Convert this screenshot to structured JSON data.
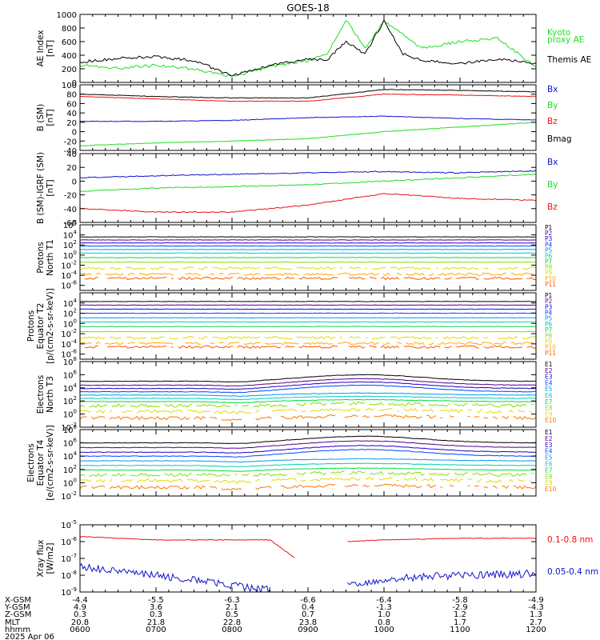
{
  "title": "GOES-18",
  "colors": {
    "black": "#000000",
    "red": "#ee1111",
    "green": "#22dd22",
    "blue": "#1111cc"
  },
  "panel_series_colors": {
    "protons": [
      "#000000",
      "#550088",
      "#2200cc",
      "#0044ff",
      "#0099ee",
      "#00ccbb",
      "#00dd44",
      "#88dd00",
      "#dddd00",
      "#ffaa00",
      "#ff5500",
      "#cc0000"
    ],
    "electrons": [
      "#000000",
      "#550088",
      "#2200cc",
      "#0044ff",
      "#0099ee",
      "#00ccbb",
      "#00dd44",
      "#88dd00",
      "#dddd00",
      "#ff7700",
      "#cc0000"
    ]
  },
  "chart_data": [
    {
      "id": "ae",
      "type": "line",
      "ylabel": [
        "AE Index",
        "[nT]"
      ],
      "ylim": [
        0,
        1000
      ],
      "scale": "linear",
      "yticks": [
        0,
        200,
        400,
        600,
        800,
        1000
      ],
      "ytick_labels": [
        "0",
        "200",
        "400",
        "600",
        "800",
        "1000"
      ],
      "x": [
        "0600",
        "0630",
        "0700",
        "0730",
        "0800",
        "0830",
        "0900",
        "0915",
        "0930",
        "0945",
        "1000",
        "1015",
        "1030",
        "1100",
        "1130",
        "1200"
      ],
      "series": [
        {
          "name": "Kyoto proxy AE",
          "color_key": "green",
          "legend_lines": [
            "Kyoto",
            "proxy AE"
          ],
          "values": [
            250,
            210,
            250,
            200,
            90,
            230,
            320,
            420,
            920,
            500,
            900,
            700,
            500,
            600,
            650,
            220
          ]
        },
        {
          "name": "Themis AE",
          "color_key": "black",
          "legend_lines": [
            "Themis AE"
          ],
          "values": [
            300,
            350,
            380,
            320,
            100,
            250,
            340,
            330,
            600,
            420,
            900,
            420,
            320,
            280,
            350,
            280
          ]
        }
      ]
    },
    {
      "id": "bsm",
      "type": "line",
      "ylabel": [
        "B (SM)",
        "[nT]"
      ],
      "ylim": [
        -40,
        100
      ],
      "scale": "linear",
      "yticks": [
        -40,
        -20,
        0,
        20,
        40,
        60,
        80,
        100
      ],
      "ytick_labels": [
        "-40",
        "-20",
        "0",
        "20",
        "40",
        "60",
        "80",
        "100"
      ],
      "x": [
        "0600",
        "0700",
        "0800",
        "0900",
        "1000",
        "1100",
        "1200"
      ],
      "series": [
        {
          "name": "Bx",
          "color_key": "blue",
          "values": [
            22,
            22,
            24,
            30,
            33,
            28,
            25
          ]
        },
        {
          "name": "By",
          "color_key": "green",
          "values": [
            -30,
            -24,
            -20,
            -15,
            0,
            10,
            20
          ]
        },
        {
          "name": "Bz",
          "color_key": "red",
          "values": [
            75,
            70,
            65,
            65,
            80,
            78,
            75
          ]
        },
        {
          "name": "Bmag",
          "color_key": "black",
          "values": [
            80,
            75,
            72,
            72,
            90,
            88,
            85
          ]
        }
      ]
    },
    {
      "id": "bigrf",
      "type": "line",
      "ylabel": [
        "B (SM)-IGRF (SM)",
        "[nT]"
      ],
      "ylim": [
        -60,
        40
      ],
      "scale": "linear",
      "yticks": [
        -60,
        -40,
        -20,
        0,
        20,
        40
      ],
      "ytick_labels": [
        "-60",
        "-40",
        "-20",
        "0",
        "20",
        "40"
      ],
      "x": [
        "0600",
        "0700",
        "0800",
        "0900",
        "1000",
        "1100",
        "1200"
      ],
      "series": [
        {
          "name": "Bx",
          "color_key": "blue",
          "values": [
            5,
            8,
            10,
            12,
            14,
            12,
            15
          ]
        },
        {
          "name": "By",
          "color_key": "green",
          "values": [
            -15,
            -10,
            -8,
            -5,
            0,
            5,
            10
          ]
        },
        {
          "name": "Bz",
          "color_key": "red",
          "values": [
            -40,
            -45,
            -45,
            -35,
            -18,
            -25,
            -28
          ]
        }
      ]
    },
    {
      "id": "pn",
      "type": "line",
      "scale": "log",
      "ylabel": [
        "Protons",
        "North T1"
      ],
      "ylim_exp": [
        -7,
        6
      ],
      "yticks_exp": [
        -6,
        -4,
        -2,
        0,
        2,
        4,
        6
      ],
      "ytick_labels": [
        "10-6",
        "10-4",
        "10-2",
        "100",
        "102",
        "104",
        "106"
      ],
      "x": [
        "0600",
        "1200"
      ],
      "series_names": [
        "P1",
        "P2",
        "P3",
        "P4",
        "P5",
        "P6",
        "P7",
        "P8",
        "P9",
        "P10",
        "P11"
      ],
      "series_log_values": [
        3.6,
        3.0,
        2.4,
        1.8,
        1.1,
        0.4,
        -0.5,
        -1.4,
        -2.6,
        -3.8,
        -4.6
      ]
    },
    {
      "id": "pe",
      "type": "line",
      "scale": "log",
      "ylabel": [
        "Protons",
        "Equator T2",
        "[p/(cm2-s-sr-keV)]"
      ],
      "ylim_exp": [
        -7,
        6
      ],
      "yticks_exp": [
        -6,
        -4,
        -2,
        0,
        2,
        4
      ],
      "ytick_labels": [
        "10-6",
        "10-4",
        "10-2",
        "100",
        "102",
        "104"
      ],
      "x": [
        "0600",
        "1200"
      ],
      "series_names": [
        "P1",
        "P2",
        "P3",
        "P4",
        "P5",
        "P6",
        "P7",
        "P8",
        "P9",
        "P10",
        "P11"
      ],
      "series_log_values": [
        4.3,
        3.6,
        2.8,
        2.0,
        1.1,
        0.3,
        -0.6,
        -1.6,
        -2.8,
        -3.9,
        -4.6
      ]
    },
    {
      "id": "en",
      "type": "line",
      "scale": "log",
      "ylabel": [
        "Electrons",
        "North T3"
      ],
      "ylim_exp": [
        -2,
        8
      ],
      "yticks_exp": [
        -2,
        0,
        2,
        4,
        6,
        8
      ],
      "ytick_labels": [
        "10-2",
        "100",
        "102",
        "104",
        "106",
        "108"
      ],
      "x": [
        "0600",
        "1200"
      ],
      "series_names": [
        "E1",
        "E2",
        "E3",
        "E4",
        "E5",
        "E6",
        "E7",
        "E8",
        "E9",
        "E10"
      ],
      "series_log_values": [
        5.0,
        4.4,
        3.9,
        3.4,
        2.9,
        2.4,
        1.9,
        1.3,
        0.4,
        -0.6
      ]
    },
    {
      "id": "ee",
      "type": "line",
      "scale": "log",
      "ylabel": [
        "Electrons",
        "Equator T4",
        "[e/(cm2-s-sr-keV)]"
      ],
      "ylim_exp": [
        -2,
        8
      ],
      "yticks_exp": [
        -2,
        0,
        2,
        4,
        6,
        8
      ],
      "ytick_labels": [
        "10-2",
        "100",
        "102",
        "104",
        "106",
        "108"
      ],
      "x": [
        "0600",
        "1200"
      ],
      "series_names": [
        "E1",
        "E2",
        "E3",
        "E4",
        "E5",
        "E6",
        "E7",
        "E8",
        "E9",
        "E10"
      ],
      "series_log_values": [
        6.0,
        5.3,
        4.6,
        4.0,
        3.3,
        2.6,
        1.9,
        1.2,
        0.3,
        -0.7
      ]
    },
    {
      "id": "xray",
      "type": "line",
      "scale": "log",
      "ylabel": [
        "Xray flux",
        "[W/m2]"
      ],
      "ylim_exp": [
        -9,
        -5
      ],
      "yticks_exp": [
        -9,
        -8,
        -7,
        -6,
        -5
      ],
      "ytick_labels": [
        "10-9",
        "10-8",
        "10-7",
        "10-6",
        "10-5"
      ],
      "x": [
        "0600",
        "0700",
        "0800",
        "0830",
        "0850",
        "0920",
        "0930",
        "1000",
        "1100",
        "1200"
      ],
      "series": [
        {
          "name": "0.1-0.8 nm",
          "color_key": "red",
          "log_values": [
            -5.7,
            -5.9,
            -5.9,
            -5.9,
            -7.0,
            null,
            -6.0,
            -5.9,
            -5.8,
            -5.8
          ]
        },
        {
          "name": "0.05-0.4 nm",
          "color_key": "blue",
          "log_values": [
            -7.5,
            -8.0,
            -8.6,
            -8.9,
            null,
            null,
            -8.6,
            -8.2,
            -8.0,
            -7.9
          ]
        }
      ]
    }
  ],
  "footer": {
    "row_labels": [
      "X-GSM",
      "Y-GSM",
      "Z-GSM",
      "MLT",
      "hhmm",
      "2025 Apr 06"
    ],
    "columns": [
      [
        "-4.4",
        "4.9",
        "0.3",
        "20.8",
        "0600"
      ],
      [
        "-5.5",
        "3.6",
        "0.3",
        "21.8",
        "0700"
      ],
      [
        "-6.3",
        "2.1",
        "0.5",
        "22.8",
        "0800"
      ],
      [
        "-6.6",
        "0.4",
        "0.7",
        "23.8",
        "0900"
      ],
      [
        "-6.4",
        "-1.3",
        "1.0",
        "0.8",
        "1000"
      ],
      [
        "-5.8",
        "-2.9",
        "1.2",
        "1.7",
        "1100"
      ],
      [
        "-4.9",
        "-4.3",
        "1.3",
        "2.7",
        "1200"
      ]
    ]
  }
}
